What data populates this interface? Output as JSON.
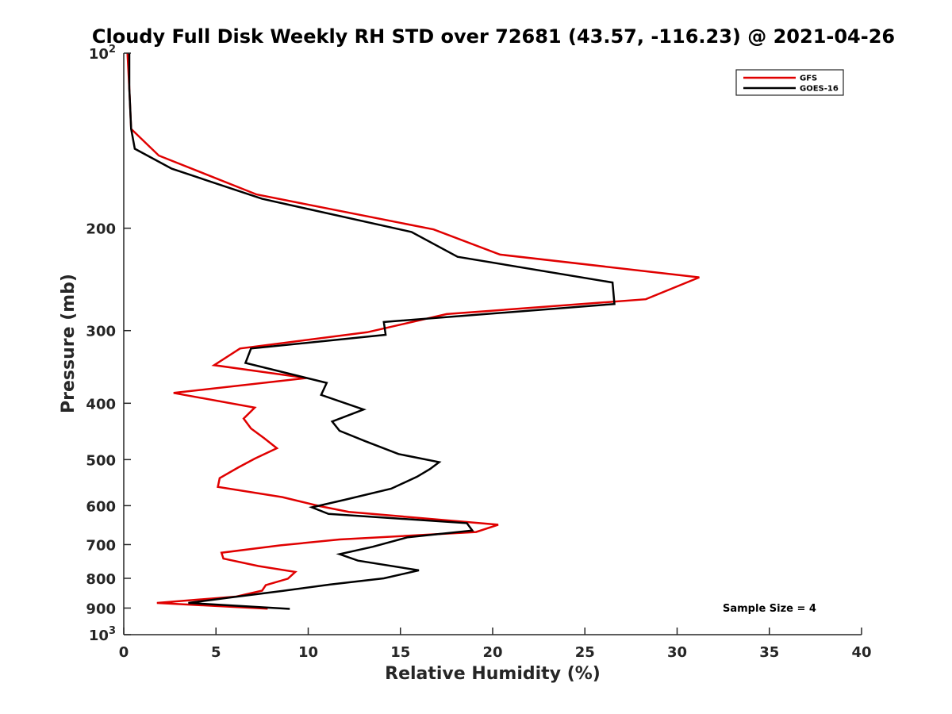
{
  "chart_data": {
    "type": "line",
    "title": "Cloudy Full Disk Weekly RH STD over 72681 (43.57, -116.23) @ 2021-04-26",
    "xlabel": "Relative Humidity (%)",
    "ylabel": "Pressure (mb)",
    "xlim": [
      0,
      40
    ],
    "ylim": [
      100,
      1000
    ],
    "y_scale": "log",
    "y_reversed": true,
    "grid": false,
    "legend_position": "top-right",
    "annotation": "Sample Size = 4",
    "x_ticks": [
      "0",
      "5",
      "10",
      "15",
      "20",
      "25",
      "30",
      "35",
      "40"
    ],
    "y_ticks": [
      {
        "value": 100,
        "base": "10",
        "exp": "2"
      },
      {
        "value": 200,
        "label": "200"
      },
      {
        "value": 300,
        "label": "300"
      },
      {
        "value": 400,
        "label": "400"
      },
      {
        "value": 500,
        "label": "500"
      },
      {
        "value": 600,
        "label": "600"
      },
      {
        "value": 700,
        "label": "700"
      },
      {
        "value": 800,
        "label": "800"
      },
      {
        "value": 900,
        "label": "900"
      },
      {
        "value": 1000,
        "base": "10",
        "exp": "3"
      }
    ],
    "series": [
      {
        "name": "GFS",
        "color": "#e00000",
        "points": [
          [
            0.2,
            100
          ],
          [
            0.3,
            115
          ],
          [
            0.4,
            135
          ],
          [
            1.9,
            150
          ],
          [
            7.2,
            175
          ],
          [
            16.8,
            201
          ],
          [
            20.4,
            222
          ],
          [
            31.2,
            243
          ],
          [
            28.3,
            265
          ],
          [
            17.5,
            281
          ],
          [
            13.2,
            302
          ],
          [
            6.3,
            322
          ],
          [
            4.9,
            344
          ],
          [
            9.9,
            362
          ],
          [
            2.7,
            384
          ],
          [
            7.1,
            407
          ],
          [
            6.5,
            425
          ],
          [
            6.9,
            442
          ],
          [
            7.6,
            459
          ],
          [
            8.3,
            478
          ],
          [
            7.1,
            498
          ],
          [
            6.2,
            516
          ],
          [
            5.2,
            538
          ],
          [
            5.1,
            557
          ],
          [
            8.6,
            580
          ],
          [
            10.6,
            601
          ],
          [
            12.2,
            615
          ],
          [
            20.3,
            647
          ],
          [
            19.1,
            666
          ],
          [
            11.7,
            686
          ],
          [
            8.5,
            702
          ],
          [
            5.3,
            723
          ],
          [
            5.4,
            740
          ],
          [
            7.3,
            762
          ],
          [
            9.3,
            780
          ],
          [
            8.9,
            801
          ],
          [
            7.7,
            822
          ],
          [
            7.5,
            840
          ],
          [
            6.1,
            860
          ],
          [
            1.8,
            882
          ],
          [
            7.8,
            902
          ]
        ]
      },
      {
        "name": "GOES-16",
        "color": "#000000",
        "points": [
          [
            0.3,
            100
          ],
          [
            0.3,
            115
          ],
          [
            0.4,
            135
          ],
          [
            0.6,
            146
          ],
          [
            2.6,
            158
          ],
          [
            7.5,
            178
          ],
          [
            15.6,
            203
          ],
          [
            18.1,
            224
          ],
          [
            26.5,
            248
          ],
          [
            26.6,
            270
          ],
          [
            14.1,
            290
          ],
          [
            14.2,
            305
          ],
          [
            6.9,
            322
          ],
          [
            6.6,
            341
          ],
          [
            11.0,
            369
          ],
          [
            10.7,
            387
          ],
          [
            13.0,
            410
          ],
          [
            11.3,
            430
          ],
          [
            11.7,
            446
          ],
          [
            13.1,
            465
          ],
          [
            14.9,
            489
          ],
          [
            17.1,
            505
          ],
          [
            16.6,
            519
          ],
          [
            15.9,
            535
          ],
          [
            14.5,
            561
          ],
          [
            12.0,
            586
          ],
          [
            10.2,
            604
          ],
          [
            11.1,
            620
          ],
          [
            18.6,
            643
          ],
          [
            18.9,
            662
          ],
          [
            15.4,
            680
          ],
          [
            13.5,
            706
          ],
          [
            11.7,
            727
          ],
          [
            12.7,
            746
          ],
          [
            16.0,
            775
          ],
          [
            14.1,
            800
          ],
          [
            11.2,
            820
          ],
          [
            8.6,
            841
          ],
          [
            5.9,
            862
          ],
          [
            3.5,
            882
          ],
          [
            9.0,
            903
          ]
        ]
      }
    ]
  }
}
